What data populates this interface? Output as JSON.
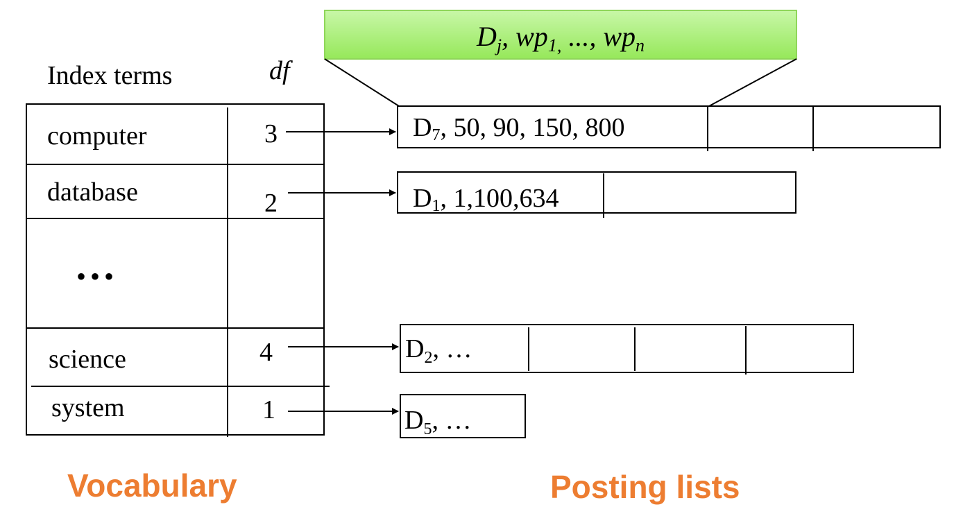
{
  "callout": {
    "d": "D",
    "d_sub": "j",
    "sep1": ", wp",
    "wp1_sub": "1,",
    "mid": " ..., wp",
    "wpn_sub": "n"
  },
  "headers": {
    "index_terms": "Index terms",
    "df": "df"
  },
  "vocabulary": [
    {
      "term": "computer",
      "df": "3"
    },
    {
      "term": "database",
      "df": "2"
    },
    {
      "term": "•••",
      "df": ""
    },
    {
      "term": "science",
      "df": "4"
    },
    {
      "term": "system",
      "df": "1"
    }
  ],
  "postings": [
    {
      "doc": "D",
      "sub": "7",
      "rest": ", 50, 90, 150, 800"
    },
    {
      "doc": "D",
      "sub": "1",
      "rest": ", 1,100,634"
    },
    {
      "doc": "D",
      "sub": "2",
      "rest": ", …"
    },
    {
      "doc": "D",
      "sub": "5",
      "rest": ", …"
    }
  ],
  "labels": {
    "vocabulary": "Vocabulary",
    "posting_lists": "Posting lists"
  },
  "colors": {
    "label_orange": "#ED7D31",
    "callout_green_top": "#c8f7a8",
    "callout_green_bottom": "#96e85a"
  }
}
